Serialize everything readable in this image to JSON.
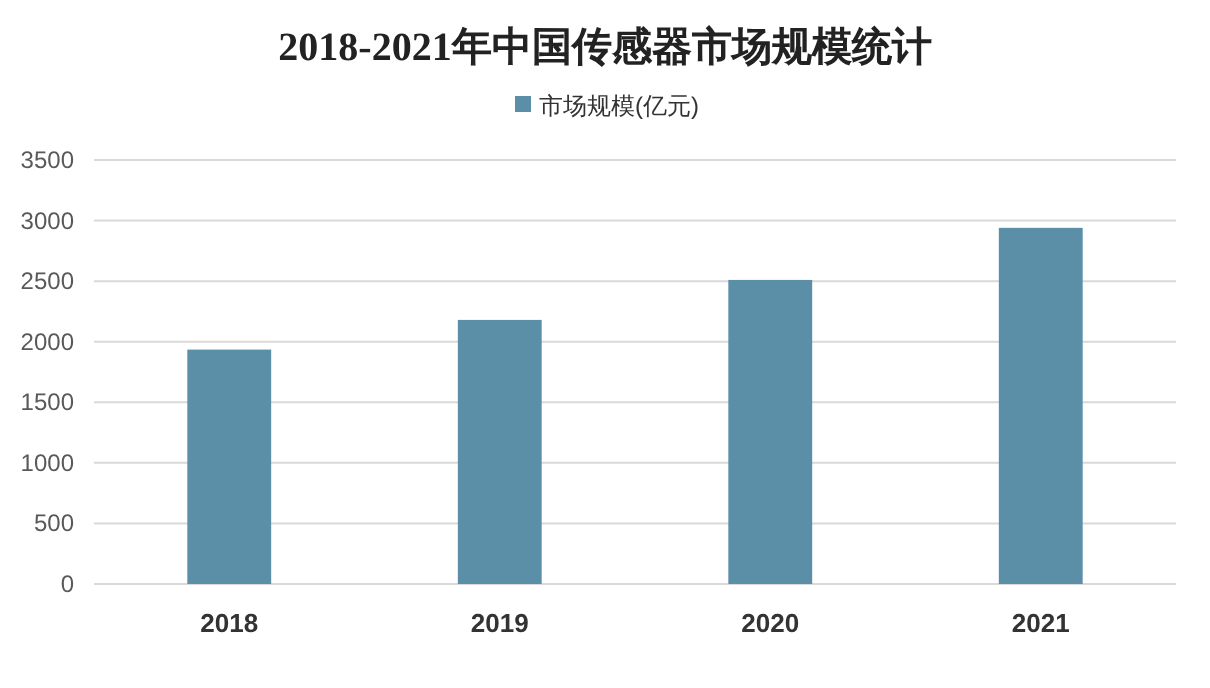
{
  "chart_data": {
    "type": "bar",
    "title": "2018-2021年中国传感器市场规模统计",
    "categories": [
      "2018",
      "2019",
      "2020",
      "2021"
    ],
    "series": [
      {
        "name": "市场规模(亿元)",
        "color": "#5b8fa8",
        "values": [
          1935,
          2180,
          2510,
          2940
        ]
      }
    ],
    "ylim": [
      0,
      3500
    ],
    "yticks": [
      0,
      500,
      1000,
      1500,
      2000,
      2500,
      3000,
      3500
    ],
    "grid": "y",
    "legend": "top"
  }
}
